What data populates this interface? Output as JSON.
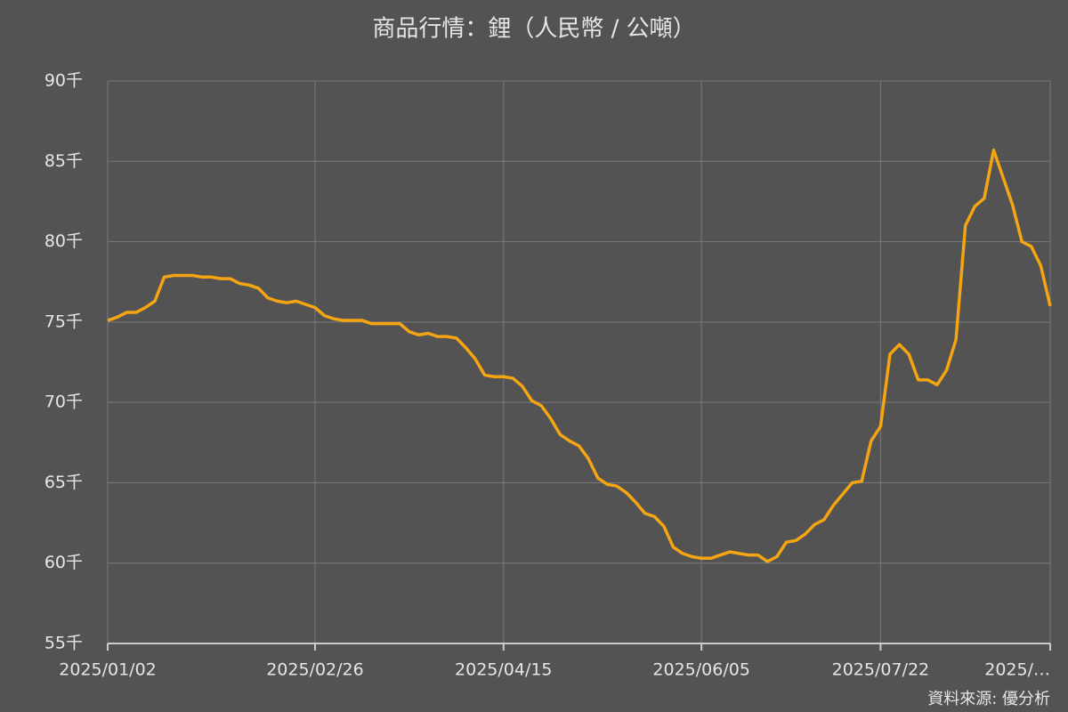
{
  "chart_data": {
    "type": "line",
    "title": "商品行情：鋰（人民幣 / 公噸）",
    "source": "資料來源: 優分析",
    "categories": [
      "2025/01/02",
      null,
      null,
      null,
      null,
      null,
      null,
      null,
      null,
      null,
      null,
      null,
      null,
      null,
      null,
      null,
      null,
      null,
      null,
      null,
      null,
      null,
      "2025/02/26",
      null,
      null,
      null,
      null,
      null,
      null,
      null,
      null,
      null,
      null,
      null,
      null,
      null,
      null,
      null,
      null,
      null,
      null,
      null,
      "2025/04/15",
      null,
      null,
      null,
      null,
      null,
      null,
      null,
      null,
      null,
      null,
      null,
      null,
      null,
      null,
      null,
      null,
      null,
      null,
      null,
      null,
      "2025/06/05",
      null,
      null,
      null,
      null,
      null,
      null,
      null,
      null,
      null,
      null,
      null,
      null,
      null,
      null,
      null,
      null,
      null,
      null,
      "2025/07/22",
      null,
      null,
      null,
      null,
      null,
      null,
      null,
      null,
      null,
      null,
      null,
      null,
      null,
      null,
      null,
      null,
      null,
      "2025/…"
    ],
    "series": [
      {
        "name": "鋰",
        "color": "#f5a512",
        "values": [
          75100,
          75300,
          75600,
          75600,
          75900,
          76300,
          77800,
          77900,
          77900,
          77900,
          77800,
          77800,
          77700,
          77700,
          77400,
          77300,
          77100,
          76500,
          76300,
          76200,
          76300,
          76100,
          75900,
          75400,
          75200,
          75100,
          75100,
          75100,
          74900,
          74900,
          74900,
          74900,
          74400,
          74200,
          74300,
          74100,
          74100,
          74000,
          73400,
          72700,
          71700,
          71600,
          71600,
          71500,
          71000,
          70100,
          69800,
          69000,
          68000,
          67600,
          67300,
          66500,
          65300,
          64900,
          64800,
          64400,
          63800,
          63100,
          62900,
          62300,
          61000,
          60600,
          60400,
          60300,
          60300,
          60500,
          60700,
          60600,
          60500,
          60500,
          60100,
          60400,
          61300,
          61400,
          61800,
          62400,
          62700,
          63600,
          64300,
          65000,
          65100,
          67600,
          68500,
          73000,
          73600,
          73000,
          71400,
          71400,
          71100,
          72000,
          73900,
          81000,
          82200,
          82700,
          85700,
          84000,
          82300,
          80000,
          79700,
          78500,
          76000
        ]
      }
    ],
    "ylim": [
      55000,
      90000
    ],
    "yticks": [
      {
        "value": 55000,
        "label": "55千"
      },
      {
        "value": 60000,
        "label": "60千"
      },
      {
        "value": 65000,
        "label": "65千"
      },
      {
        "value": 70000,
        "label": "70千"
      },
      {
        "value": 75000,
        "label": "75千"
      },
      {
        "value": 80000,
        "label": "80千"
      },
      {
        "value": 85000,
        "label": "85千"
      },
      {
        "value": 90000,
        "label": "90千"
      }
    ],
    "grid": true
  }
}
